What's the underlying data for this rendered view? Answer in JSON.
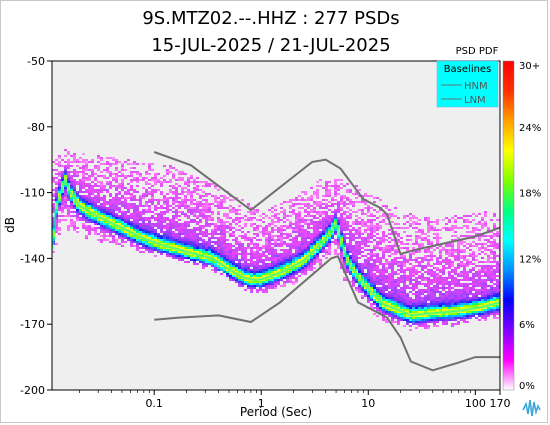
{
  "chart_data": {
    "type": "heatmap",
    "title_line1": "9S.MTZ02.--.HHZ : 277 PSDs",
    "title_line2": "15-JUL-2025 / 21-JUL-2025",
    "xlabel": "Period (Sec)",
    "ylabel": "dB",
    "x_scale": "log",
    "xlim": [
      0.0111,
      170
    ],
    "ylim": [
      -200,
      -50
    ],
    "x_ticks": [
      {
        "value": 0.1,
        "label": "0.1"
      },
      {
        "value": 1,
        "label": "1"
      },
      {
        "value": 10,
        "label": "10"
      },
      {
        "value": 100,
        "label": "100"
      },
      {
        "value": 170,
        "label": "170"
      }
    ],
    "y_ticks": [
      {
        "value": -50,
        "label": "-50"
      },
      {
        "value": -80,
        "label": "-80"
      },
      {
        "value": -110,
        "label": "-110"
      },
      {
        "value": -140,
        "label": "-140"
      },
      {
        "value": -170,
        "label": "-170"
      },
      {
        "value": -200,
        "label": "-200"
      }
    ],
    "plot_background": "#efefef",
    "colorbar": {
      "title": "PSD PDF",
      "range": [
        0,
        30
      ],
      "ticks": [
        {
          "value": 0,
          "label": "0%"
        },
        {
          "value": 6,
          "label": "6%"
        },
        {
          "value": 12,
          "label": "12%"
        },
        {
          "value": 18,
          "label": "18%"
        },
        {
          "value": 24,
          "label": "24%"
        },
        {
          "value": 30,
          "label": "30+"
        }
      ],
      "colors": [
        "#ffffff",
        "#ff00ff",
        "#8000ff",
        "#0000ff",
        "#0090ff",
        "#00ffff",
        "#00ff80",
        "#80ff00",
        "#ffff00",
        "#ffa000",
        "#ff3000",
        "#ff0000"
      ]
    },
    "legend": {
      "title": "Baselines",
      "placement": "top-right",
      "background": "#00ffff",
      "items": [
        "HNM",
        "LNM"
      ]
    },
    "baselines": [
      {
        "name": "HNM",
        "color": "#707070",
        "points": [
          [
            0.1,
            -91.5
          ],
          [
            0.22,
            -97.5
          ],
          [
            0.8,
            -118
          ],
          [
            3,
            -96
          ],
          [
            4,
            -95
          ],
          [
            5.5,
            -99
          ],
          [
            9,
            -113
          ],
          [
            13,
            -117
          ],
          [
            15,
            -120
          ],
          [
            20,
            -138
          ],
          [
            28,
            -136
          ],
          [
            100,
            -130
          ],
          [
            170,
            -126
          ]
        ]
      },
      {
        "name": "LNM",
        "color": "#707070",
        "points": [
          [
            0.1,
            -168
          ],
          [
            0.17,
            -167
          ],
          [
            0.4,
            -166
          ],
          [
            0.8,
            -169
          ],
          [
            1.5,
            -160
          ],
          [
            4.5,
            -140
          ],
          [
            5.2,
            -139
          ],
          [
            8,
            -160
          ],
          [
            15,
            -167
          ],
          [
            20,
            -176
          ],
          [
            25,
            -187
          ],
          [
            40,
            -191
          ],
          [
            70,
            -187.5
          ],
          [
            100,
            -185
          ],
          [
            170,
            -185
          ]
        ]
      }
    ],
    "pdf_mode_curve": [
      [
        0.0111,
        -137
      ],
      [
        0.012,
        -118
      ],
      [
        0.013,
        -112
      ],
      [
        0.014,
        -107
      ],
      [
        0.0148,
        -104
      ],
      [
        0.016,
        -109
      ],
      [
        0.02,
        -116
      ],
      [
        0.03,
        -121
      ],
      [
        0.05,
        -126
      ],
      [
        0.08,
        -131
      ],
      [
        0.12,
        -134
      ],
      [
        0.2,
        -137
      ],
      [
        0.35,
        -140
      ],
      [
        0.5,
        -145
      ],
      [
        0.7,
        -149
      ],
      [
        0.9,
        -150
      ],
      [
        1.1,
        -149
      ],
      [
        1.6,
        -146
      ],
      [
        2.5,
        -141
      ],
      [
        3.5,
        -134
      ],
      [
        4.5,
        -128
      ],
      [
        5.0,
        -124
      ],
      [
        5.5,
        -131
      ],
      [
        6.5,
        -142
      ],
      [
        8.5,
        -150
      ],
      [
        11,
        -156
      ],
      [
        14,
        -161
      ],
      [
        18,
        -163
      ],
      [
        25,
        -166
      ],
      [
        40,
        -165
      ],
      [
        70,
        -164
      ],
      [
        120,
        -162
      ],
      [
        170,
        -160
      ]
    ],
    "pdf_upper_limit": [
      [
        0.0111,
        -95
      ],
      [
        0.014,
        -90
      ],
      [
        0.02,
        -92
      ],
      [
        0.04,
        -94
      ],
      [
        0.08,
        -96
      ],
      [
        0.15,
        -98
      ],
      [
        0.3,
        -104
      ],
      [
        0.6,
        -112
      ],
      [
        1,
        -118
      ],
      [
        2,
        -112
      ],
      [
        3.5,
        -104
      ],
      [
        5,
        -102
      ],
      [
        8,
        -107
      ],
      [
        12,
        -112
      ],
      [
        20,
        -118
      ],
      [
        40,
        -122
      ],
      [
        80,
        -120
      ],
      [
        170,
        -118
      ]
    ],
    "pdf_lower_limit": [
      [
        0.0111,
        -140
      ],
      [
        0.014,
        -126
      ],
      [
        0.02,
        -130
      ],
      [
        0.05,
        -135
      ],
      [
        0.1,
        -139
      ],
      [
        0.2,
        -142
      ],
      [
        0.4,
        -147
      ],
      [
        0.7,
        -155
      ],
      [
        1,
        -156
      ],
      [
        2,
        -152
      ],
      [
        3.5,
        -145
      ],
      [
        4.8,
        -137
      ],
      [
        6,
        -150
      ],
      [
        9,
        -162
      ],
      [
        15,
        -170
      ],
      [
        25,
        -173
      ],
      [
        60,
        -171
      ],
      [
        170,
        -167
      ]
    ]
  }
}
